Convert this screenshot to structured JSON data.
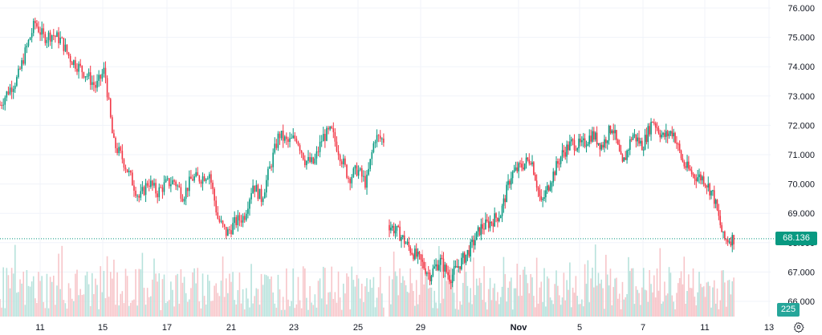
{
  "chart_data": {
    "type": "candlestick",
    "yaxis": {
      "ticks": [
        "76.000",
        "75.000",
        "74.000",
        "73.000",
        "72.000",
        "71.000",
        "70.000",
        "69.000",
        "68.000",
        "67.000",
        "66.000"
      ],
      "range": [
        65.3,
        76.25
      ]
    },
    "xaxis": {
      "ticks": [
        {
          "label": "11",
          "bold": false
        },
        {
          "label": "15",
          "bold": false
        },
        {
          "label": "17",
          "bold": false
        },
        {
          "label": "21",
          "bold": false
        },
        {
          "label": "23",
          "bold": false
        },
        {
          "label": "25",
          "bold": false
        },
        {
          "label": "29",
          "bold": false
        },
        {
          "label": "Nov",
          "bold": true
        },
        {
          "label": "5",
          "bold": false
        },
        {
          "label": "7",
          "bold": false
        },
        {
          "label": "11",
          "bold": false
        },
        {
          "label": "13",
          "bold": false
        }
      ]
    },
    "price_path": [
      72.7,
      73.2,
      73.6,
      74.6,
      75.5,
      75.0,
      75.1,
      74.9,
      74.3,
      74.0,
      73.7,
      73.3,
      73.9,
      71.4,
      70.9,
      70.2,
      69.5,
      70.1,
      69.7,
      70.0,
      70.1,
      69.6,
      70.2,
      70.2,
      70.4,
      68.8,
      68.3,
      68.7,
      68.9,
      70.0,
      69.5,
      70.6,
      71.7,
      71.4,
      71.6,
      70.8,
      70.7,
      71.6,
      71.8,
      71.0,
      70.2,
      70.5,
      70.0,
      71.6,
      71.5,
      68.6,
      68.3,
      67.8,
      67.4,
      66.9,
      67.4,
      66.8,
      67.3,
      67.8,
      68.5,
      68.7,
      69.0,
      70.3,
      70.6,
      70.9,
      69.3,
      70.2,
      71.0,
      71.4,
      71.3,
      71.7,
      71.3,
      72.0,
      70.6,
      71.7,
      71.3,
      72.2,
      71.6,
      71.8,
      70.7,
      70.3,
      70.2,
      69.6,
      68.1,
      68.14
    ],
    "last_price": "68.136",
    "last_price_color": "#089981",
    "volume_label": "225",
    "volume_label_color": "#26a69a",
    "up_color": "#089981",
    "down_color": "#f23645",
    "volume_up_color": "#b7e2dc",
    "volume_down_color": "#f7c5c9",
    "grid": true,
    "dotted_last_price_line": true,
    "settings_icon": "gear-icon"
  }
}
